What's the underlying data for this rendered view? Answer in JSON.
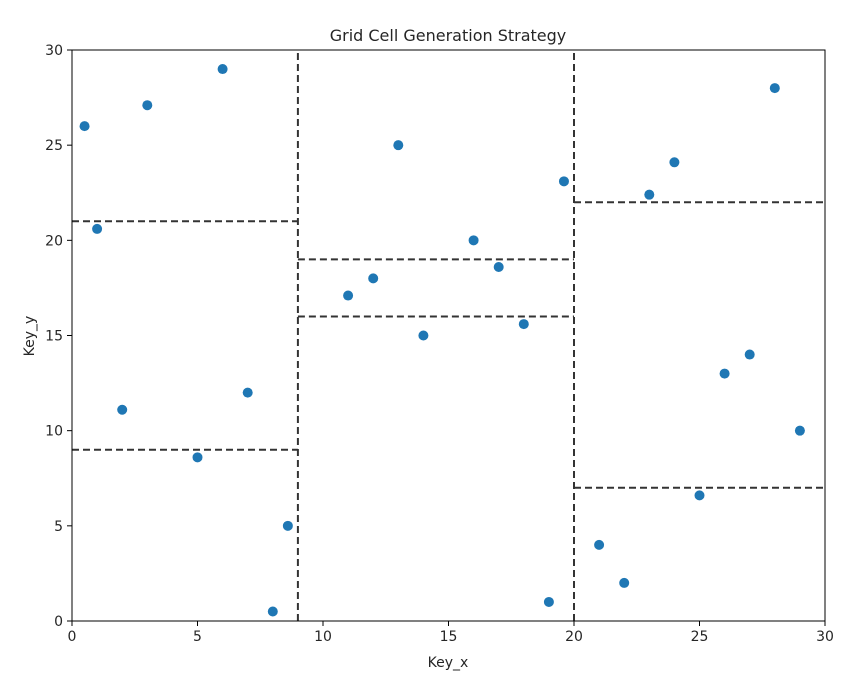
{
  "chart_data": {
    "type": "scatter",
    "title": "Grid Cell Generation Strategy",
    "xlabel": "Key_x",
    "ylabel": "Key_y",
    "xlim": [
      0,
      30
    ],
    "ylim": [
      0,
      30
    ],
    "xticks": [
      0,
      5,
      10,
      15,
      20,
      25,
      30
    ],
    "yticks": [
      0,
      5,
      10,
      15,
      20,
      25,
      30
    ],
    "grid": false,
    "point_color": "#1f77b4",
    "line_color": "#333333",
    "series": [
      {
        "points": [
          {
            "x": 0.5,
            "y": 26
          },
          {
            "x": 1,
            "y": 20.6
          },
          {
            "x": 2,
            "y": 11.1
          },
          {
            "x": 3,
            "y": 27.1
          },
          {
            "x": 5,
            "y": 8.6
          },
          {
            "x": 6,
            "y": 29
          },
          {
            "x": 7,
            "y": 12
          },
          {
            "x": 8,
            "y": 0.5
          },
          {
            "x": 8.6,
            "y": 5
          },
          {
            "x": 11,
            "y": 17.1
          },
          {
            "x": 12,
            "y": 18
          },
          {
            "x": 13,
            "y": 25
          },
          {
            "x": 14,
            "y": 15
          },
          {
            "x": 16,
            "y": 20
          },
          {
            "x": 17,
            "y": 18.6
          },
          {
            "x": 18,
            "y": 15.6
          },
          {
            "x": 19,
            "y": 1
          },
          {
            "x": 19.6,
            "y": 23.1
          },
          {
            "x": 21,
            "y": 4
          },
          {
            "x": 22,
            "y": 2
          },
          {
            "x": 23,
            "y": 22.4
          },
          {
            "x": 24,
            "y": 24.1
          },
          {
            "x": 25,
            "y": 6.6
          },
          {
            "x": 26,
            "y": 13
          },
          {
            "x": 27,
            "y": 14
          },
          {
            "x": 28,
            "y": 28
          },
          {
            "x": 29,
            "y": 10
          }
        ]
      }
    ],
    "partition_lines": [
      {
        "orientation": "vertical",
        "x": 9,
        "y_range": [
          0,
          30
        ]
      },
      {
        "orientation": "vertical",
        "x": 20,
        "y_range": [
          0,
          30
        ]
      },
      {
        "orientation": "horizontal",
        "y": 21,
        "x_range": [
          0,
          9
        ]
      },
      {
        "orientation": "horizontal",
        "y": 9,
        "x_range": [
          0,
          9
        ]
      },
      {
        "orientation": "horizontal",
        "y": 19,
        "x_range": [
          9,
          20
        ]
      },
      {
        "orientation": "horizontal",
        "y": 16,
        "x_range": [
          9,
          20
        ]
      },
      {
        "orientation": "horizontal",
        "y": 22,
        "x_range": [
          20,
          30
        ]
      },
      {
        "orientation": "horizontal",
        "y": 7,
        "x_range": [
          20,
          30
        ]
      }
    ]
  }
}
